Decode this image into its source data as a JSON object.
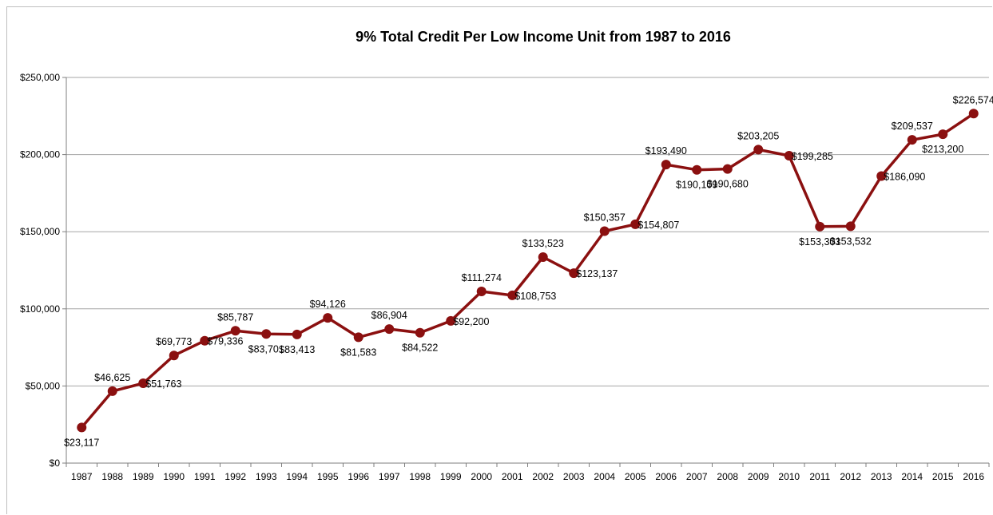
{
  "chart_data": {
    "type": "line",
    "title": "9% Total Credit Per Low Income Unit from 1987 to 2016",
    "xlabel": "",
    "ylabel": "",
    "categories": [
      "1987",
      "1988",
      "1989",
      "1990",
      "1991",
      "1992",
      "1993",
      "1994",
      "1995",
      "1996",
      "1997",
      "1998",
      "1999",
      "2000",
      "2001",
      "2002",
      "2003",
      "2004",
      "2005",
      "2006",
      "2007",
      "2008",
      "2009",
      "2010",
      "2011",
      "2012",
      "2013",
      "2014",
      "2015",
      "2016"
    ],
    "values": [
      23117,
      46625,
      51763,
      69773,
      79336,
      85787,
      83701,
      83413,
      94126,
      81583,
      86904,
      84522,
      92200,
      111274,
      108753,
      133523,
      123137,
      150357,
      154807,
      193490,
      190109,
      190680,
      203205,
      199285,
      153303,
      153532,
      186090,
      209537,
      213200,
      226574
    ],
    "data_labels": [
      "$23,117",
      "$46,625",
      "$51,763",
      "$69,773",
      "$79,336",
      "$85,787",
      "$83,701",
      "$83,413",
      "$94,126",
      "$81,583",
      "$86,904",
      "$84,522",
      "$92,200",
      "$111,274",
      "$108,753",
      "$133,523",
      "$123,137",
      "$150,357",
      "$154,807",
      "$193,490",
      "$190,109",
      "$190,680",
      "$203,205",
      "$199,285",
      "$153,303",
      "$153,532",
      "$186,090",
      "$209,537",
      "$213,200",
      "$226,574"
    ],
    "ylim": [
      0,
      250000
    ],
    "yticks": [
      0,
      50000,
      100000,
      150000,
      200000,
      250000
    ],
    "ytick_labels": [
      "$0",
      "$50,000",
      "$100,000",
      "$150,000",
      "$200,000",
      "$250,000"
    ],
    "grid": "horizontal",
    "legend": "none",
    "colors": {
      "line": "#8b1010",
      "grid": "#a6a6a6",
      "axis": "#7f7f7f"
    }
  }
}
